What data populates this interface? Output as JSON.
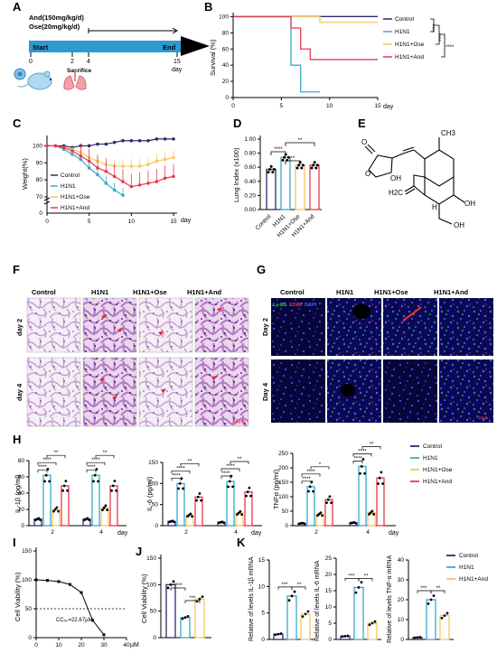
{
  "panels": {
    "A": {
      "label": "A",
      "dose_line1": "And(150mg/kg/d)",
      "dose_line2": "Ose(20mg/kg/d)",
      "start": "Start",
      "end": "End",
      "sacrifice": "Sacrifice",
      "day": "day",
      "ticks": [
        "0",
        "2",
        "4",
        "15"
      ]
    },
    "B": {
      "label": "B",
      "ylabel": "Survival (%)",
      "xunit": "day",
      "yticks": [
        "0",
        "20",
        "40",
        "60",
        "80",
        "100"
      ],
      "xticks": [
        "0",
        "5",
        "10",
        "15"
      ],
      "legend": [
        "Control",
        "H1N1",
        "H1N1+Ose",
        "H1N1+And"
      ],
      "sig": "****"
    },
    "C": {
      "label": "C",
      "ylabel": "Weight(%)",
      "xunit": "day",
      "yticks": [
        "0",
        "70",
        "80",
        "90",
        "100"
      ],
      "xticks": [
        "0",
        "5",
        "10",
        "15"
      ],
      "legend": [
        "Control",
        "H1N1",
        "H1N1+Ose",
        "H1N1+And"
      ]
    },
    "D": {
      "label": "D",
      "ylabel": "Lung Index (x100)",
      "yticks": [
        "0.00",
        "0.20",
        "0.40",
        "0.60",
        "0.80",
        "1.00"
      ],
      "groups": [
        "Control",
        "H1N1",
        "H1N1+Ose",
        "H1N1+And"
      ],
      "sig": [
        "****",
        "**",
        "**"
      ]
    },
    "E": {
      "label": "E",
      "atoms": [
        "O",
        "O",
        "OH",
        "CH3",
        "H2C",
        "OH",
        "H",
        "OH"
      ]
    },
    "F": {
      "label": "F",
      "cols": [
        "Control",
        "H1N1",
        "H1N1+Ose",
        "H1N1+And"
      ],
      "rows": [
        "day 2",
        "day 4"
      ],
      "scale": "50µm"
    },
    "G": {
      "label": "G",
      "cols": [
        "Control",
        "H1N1",
        "H1N1+Ose",
        "H1N1+And"
      ],
      "rows": [
        "Day 2",
        "Day 4"
      ],
      "stain_green": "Ly-6G",
      "stain_red": "CD86",
      "stain_blue": "DAPI",
      "scale": "20µm"
    },
    "H": {
      "label": "H",
      "ylabels": [
        "IL-1β (pg/ml)",
        "IL-6 (pg/ml)",
        "TNFα (pg/ml)"
      ],
      "yticks1": [
        "0",
        "20",
        "40",
        "60",
        "80"
      ],
      "yticks2": [
        "0",
        "50",
        "100",
        "150"
      ],
      "yticks3": [
        "0",
        "50",
        "100",
        "150",
        "200",
        "250"
      ],
      "xticks": [
        "2",
        "4"
      ],
      "xunit": "day",
      "legend": [
        "Control",
        "H1N1",
        "H1N1+Ose",
        "H1N1+And"
      ],
      "sig1": [
        "****",
        "****",
        "**",
        "****",
        "****",
        "**"
      ],
      "sig2": [
        "****",
        "****",
        "**",
        "****",
        "****",
        "**"
      ],
      "sig3": [
        "****",
        "****",
        "*",
        "****",
        "****",
        "**"
      ]
    },
    "I": {
      "label": "I",
      "ylabel": "Cell Viability (%)",
      "yticks": [
        "0",
        "50",
        "100",
        "150"
      ],
      "xticks": [
        "0",
        "10",
        "20",
        "30",
        "40"
      ],
      "xunit": "µM",
      "cc50": "CC₅₀=22.67µM"
    },
    "J": {
      "label": "J",
      "ylabel": "Cell Viability (%)",
      "yticks": [
        "0",
        "50",
        "100",
        "150"
      ],
      "sig": [
        "****",
        "***"
      ]
    },
    "K": {
      "label": "K",
      "ylabels": [
        "Relative of levels IL-1β mRNA",
        "Relative of levels IL-6 mRNA",
        "Relative of levels TNF-α mRNA"
      ],
      "yticks1": [
        "0",
        "5",
        "10",
        "15"
      ],
      "yticks2": [
        "0",
        "5",
        "10",
        "15",
        "20",
        "25"
      ],
      "yticks3": [
        "0",
        "10",
        "20",
        "30",
        "40"
      ],
      "legend": [
        "Control",
        "H1N1",
        "H1N1+And"
      ],
      "sig": [
        "***",
        "**"
      ]
    }
  },
  "chart_data": [
    {
      "type": "line",
      "title": "B",
      "ylabel": "Survival (%)",
      "xlabel": "day",
      "ylim": [
        0,
        105
      ],
      "xlim": [
        0,
        15
      ],
      "series": [
        {
          "name": "Control",
          "x": [
            0,
            15
          ],
          "values": [
            100,
            100
          ]
        },
        {
          "name": "H1N1",
          "x": [
            0,
            6,
            6,
            7,
            7,
            9
          ],
          "values": [
            100,
            100,
            40,
            40,
            7,
            7
          ]
        },
        {
          "name": "H1N1+Ose",
          "x": [
            0,
            9,
            9,
            15
          ],
          "values": [
            100,
            100,
            93,
            93
          ]
        },
        {
          "name": "H1N1+And",
          "x": [
            0,
            6,
            6,
            7,
            7,
            8,
            8,
            15
          ],
          "values": [
            100,
            100,
            86,
            86,
            60,
            60,
            47,
            47
          ]
        }
      ]
    },
    {
      "type": "line",
      "title": "C",
      "ylabel": "Weight(%)",
      "xlabel": "day",
      "ylim": [
        70,
        105
      ],
      "xlim": [
        0,
        15
      ],
      "x": [
        0,
        1,
        2,
        3,
        4,
        5,
        6,
        7,
        8,
        9,
        10,
        11,
        12,
        13,
        14,
        15
      ],
      "series": [
        {
          "name": "Control",
          "values": [
            100,
            100,
            100,
            99,
            100,
            100,
            101,
            101,
            102,
            103,
            103,
            103,
            103,
            104,
            104,
            104
          ]
        },
        {
          "name": "H1N1",
          "values": [
            100,
            100,
            98,
            95,
            92,
            87,
            83,
            78,
            74,
            71,
            null,
            null,
            null,
            null,
            null,
            null
          ]
        },
        {
          "name": "H1N1+Ose",
          "values": [
            100,
            100,
            99,
            98,
            96,
            93,
            91,
            89,
            88,
            88,
            88,
            88,
            89,
            91,
            92,
            93
          ]
        },
        {
          "name": "H1N1+And",
          "values": [
            100,
            100,
            99,
            97,
            94,
            91,
            87,
            85,
            82,
            79,
            76,
            77,
            78,
            79,
            81,
            82
          ]
        }
      ]
    },
    {
      "type": "bar",
      "title": "D",
      "ylabel": "Lung Index (x100)",
      "ylim": [
        0,
        1.0
      ],
      "categories": [
        "Control",
        "H1N1",
        "H1N1+Ose",
        "H1N1+And"
      ],
      "values": [
        0.57,
        0.74,
        0.63,
        0.63
      ]
    },
    {
      "type": "bar",
      "title": "H",
      "categories": [
        "2",
        "4"
      ],
      "ylabel": "IL-1β (pg/ml)",
      "ylim": [
        0,
        80
      ],
      "series": [
        {
          "name": "Control",
          "values": [
            8,
            8
          ]
        },
        {
          "name": "H1N1",
          "values": [
            62,
            62
          ]
        },
        {
          "name": "H1N1+Ose",
          "values": [
            20,
            22
          ]
        },
        {
          "name": "H1N1+And",
          "values": [
            49,
            49
          ]
        }
      ]
    },
    {
      "type": "bar",
      "title": "H",
      "categories": [
        "2",
        "4"
      ],
      "ylabel": "IL-6 (pg/ml)",
      "ylim": [
        0,
        150
      ],
      "series": [
        {
          "name": "Control",
          "values": [
            10,
            8
          ]
        },
        {
          "name": "H1N1",
          "values": [
            100,
            105
          ]
        },
        {
          "name": "H1N1+Ose",
          "values": [
            25,
            30
          ]
        },
        {
          "name": "H1N1+And",
          "values": [
            68,
            80
          ]
        }
      ]
    },
    {
      "type": "bar",
      "title": "H",
      "categories": [
        "2",
        "4"
      ],
      "ylabel": "TNFα (pg/ml)",
      "ylim": [
        0,
        250
      ],
      "series": [
        {
          "name": "Control",
          "values": [
            8,
            10
          ]
        },
        {
          "name": "H1N1",
          "values": [
            135,
            205
          ]
        },
        {
          "name": "H1N1+Ose",
          "values": [
            40,
            45
          ]
        },
        {
          "name": "H1N1+And",
          "values": [
            90,
            165
          ]
        }
      ]
    },
    {
      "type": "line",
      "title": "I",
      "ylabel": "Cell Viability (%)",
      "xlabel": "µM",
      "ylim": [
        0,
        150
      ],
      "xlim": [
        0,
        40
      ],
      "series": [
        {
          "name": "",
          "x": [
            0,
            5,
            10,
            15,
            20,
            25,
            30
          ],
          "values": [
            100,
            99,
            97,
            92,
            78,
            30,
            5
          ]
        }
      ]
    },
    {
      "type": "bar",
      "title": "J",
      "ylabel": "Cell Viability (%)",
      "ylim": [
        0,
        150
      ],
      "categories": [
        "Control",
        "H1N1",
        "H1N1+And"
      ],
      "values": [
        100,
        38,
        73
      ]
    },
    {
      "type": "bar",
      "title": "K",
      "categories": [
        "Control",
        "H1N1",
        "H1N1+And"
      ],
      "ylabel": "Relative of levels IL-1β mRNA",
      "ylim": [
        0,
        15
      ],
      "values": [
        1,
        8.2,
        4.8
      ]
    },
    {
      "type": "bar",
      "title": "K",
      "categories": [
        "Control",
        "H1N1",
        "H1N1+And"
      ],
      "ylabel": "Relative of levels IL-6 mRNA",
      "ylim": [
        0,
        25
      ],
      "values": [
        1,
        16,
        5
      ]
    },
    {
      "type": "bar",
      "title": "K",
      "categories": [
        "Control",
        "H1N1",
        "H1N1+And"
      ],
      "ylabel": "Relative of levels TNF-α mRNA",
      "ylim": [
        0,
        40
      ],
      "values": [
        1,
        20,
        12
      ]
    }
  ],
  "colors": {
    "control": "#2b2b6b",
    "h1n1": "#3aa9c9",
    "ose": "#f6c760",
    "and": "#e8384f"
  }
}
